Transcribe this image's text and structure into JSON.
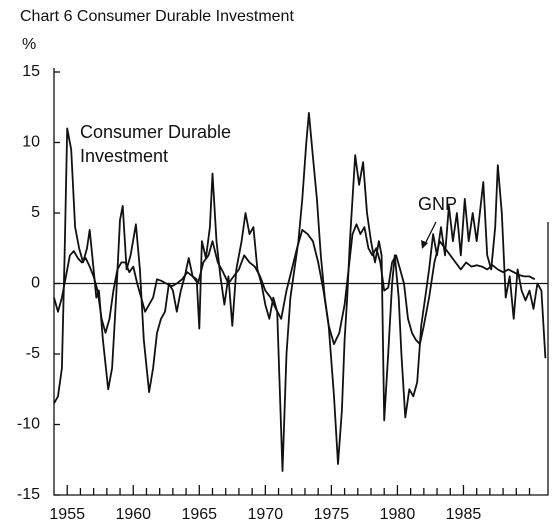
{
  "chart_data": {
    "type": "line",
    "title": "Chart 6  Consumer Durable Investment",
    "y_label": "%",
    "annotations": [
      "Consumer Durable",
      "Investment",
      "GNP"
    ],
    "xlim": [
      1954.0,
      1991.4
    ],
    "xticks": [
      1955,
      1960,
      1965,
      1970,
      1975,
      1980,
      1985
    ],
    "xminorticks": [
      1956,
      1957,
      1958,
      1959,
      1961,
      1962,
      1963,
      1964,
      1966,
      1967,
      1968,
      1969,
      1971,
      1972,
      1973,
      1974,
      1976,
      1977,
      1978,
      1979,
      1981,
      1982,
      1983,
      1984,
      1986,
      1987,
      1988,
      1989,
      1990
    ],
    "ylim": [
      -15,
      15
    ],
    "yticks": [
      -15,
      -10,
      -5,
      0,
      5,
      10,
      15
    ],
    "zero_line": true,
    "series": [
      {
        "color": "#111111",
        "x": [
          1954.0,
          1954.3,
          1954.6,
          1954.8,
          1955.0,
          1955.3,
          1955.6,
          1955.9,
          1956.2,
          1956.5,
          1956.7,
          1957.0,
          1957.2,
          1957.4,
          1957.7,
          1958.1,
          1958.4,
          1958.7,
          1959.0,
          1959.2,
          1959.5,
          1959.8,
          1960.2,
          1960.5,
          1960.8,
          1961.2,
          1961.5,
          1961.8,
          1962.1,
          1962.4,
          1962.7,
          1963.0,
          1963.3,
          1963.6,
          1963.9,
          1964.2,
          1964.5,
          1964.8,
          1965.0,
          1965.2,
          1965.5,
          1965.8,
          1966.0,
          1966.3,
          1966.6,
          1966.9,
          1967.2,
          1967.5,
          1967.8,
          1968.2,
          1968.5,
          1968.8,
          1969.1,
          1969.4,
          1969.7,
          1970.0,
          1970.3,
          1970.6,
          1970.9,
          1971.3,
          1971.6,
          1971.9,
          1972.2,
          1972.5,
          1972.8,
          1973.1,
          1973.3,
          1973.6,
          1973.9,
          1974.2,
          1974.5,
          1974.8,
          1975.2,
          1975.5,
          1975.8,
          1976.0,
          1976.2,
          1976.4,
          1976.6,
          1976.8,
          1977.1,
          1977.4,
          1977.7,
          1978.0,
          1978.3,
          1978.6,
          1978.8,
          1979.0,
          1979.3,
          1979.6,
          1979.8,
          1980.1,
          1980.3,
          1980.6,
          1980.9,
          1981.2,
          1981.5,
          1981.8,
          1982.1,
          1982.4,
          1982.7,
          1983.0,
          1983.3,
          1983.6,
          1983.9,
          1984.2,
          1984.5,
          1984.8,
          1985.1,
          1985.4,
          1985.7,
          1986.0,
          1986.5,
          1986.8,
          1987.1,
          1987.4,
          1987.6,
          1987.9,
          1988.2,
          1988.5,
          1988.8,
          1989.1,
          1989.4,
          1989.7,
          1990.0,
          1990.3,
          1990.6,
          1990.9,
          1991.2
        ],
        "values": [
          -8.5,
          -8,
          -6,
          2,
          11,
          9.5,
          4,
          2.5,
          1.5,
          2.5,
          3.8,
          1,
          -1,
          -0.5,
          -4,
          -7.5,
          -6,
          -1,
          4.5,
          5.5,
          1,
          2,
          4.2,
          1,
          -4,
          -7.7,
          -6,
          -3.5,
          -2.5,
          -2,
          0,
          -0.5,
          -2,
          -0.5,
          0.5,
          1.8,
          0.5,
          0.3,
          -3.2,
          3,
          1.8,
          4,
          7.8,
          3,
          0.5,
          -1.5,
          0.5,
          -3,
          1,
          3,
          5,
          3.5,
          4,
          1,
          0,
          -1.5,
          -2.5,
          -1,
          -2,
          -13.3,
          -5,
          -1,
          1,
          3,
          6,
          10,
          12.1,
          9,
          6,
          2,
          -1,
          -3,
          -8,
          -12.8,
          -9,
          -4,
          -1,
          3,
          6,
          9.1,
          7,
          8.6,
          5,
          3,
          1.5,
          3,
          2,
          -9.7,
          -5,
          0,
          2,
          -1,
          -5,
          -9.5,
          -7.5,
          -8,
          -7,
          -3,
          -1,
          1,
          3.5,
          2,
          4,
          2,
          5.5,
          3,
          5,
          2,
          6,
          3,
          5,
          3,
          7.2,
          2,
          1,
          4,
          8.4,
          5,
          -1,
          0.5,
          -2.5,
          1,
          -0.5,
          -1.2,
          -0.5,
          -1.8,
          0,
          -0.5,
          -5.3
        ]
      },
      {
        "color": "#111111",
        "x": [
          1954.0,
          1954.3,
          1954.6,
          1954.9,
          1955.2,
          1955.5,
          1955.8,
          1956.1,
          1956.4,
          1956.7,
          1957.0,
          1957.3,
          1957.6,
          1957.9,
          1958.2,
          1958.5,
          1958.8,
          1959.1,
          1959.4,
          1959.7,
          1960.0,
          1960.3,
          1960.6,
          1960.9,
          1961.2,
          1961.5,
          1961.8,
          1962.1,
          1962.5,
          1962.9,
          1963.3,
          1963.7,
          1964.1,
          1964.5,
          1964.9,
          1965.3,
          1965.7,
          1966.0,
          1966.4,
          1966.8,
          1967.2,
          1967.6,
          1968.0,
          1968.4,
          1968.8,
          1969.2,
          1969.6,
          1970.0,
          1970.4,
          1970.8,
          1971.2,
          1971.6,
          1972.0,
          1972.4,
          1972.8,
          1973.2,
          1973.6,
          1974.0,
          1974.4,
          1974.8,
          1975.2,
          1975.6,
          1976.0,
          1976.3,
          1976.6,
          1976.9,
          1977.2,
          1977.5,
          1977.8,
          1978.1,
          1978.4,
          1978.7,
          1979.0,
          1979.3,
          1979.6,
          1979.9,
          1980.2,
          1980.5,
          1980.8,
          1981.1,
          1981.4,
          1981.7,
          1982.0,
          1982.4,
          1982.8,
          1983.2,
          1983.6,
          1984.0,
          1984.4,
          1984.8,
          1985.2,
          1985.6,
          1986.0,
          1986.4,
          1986.8,
          1987.2,
          1987.6,
          1988.0,
          1988.4,
          1988.8,
          1989.2,
          1989.6,
          1990.0,
          1990.4
        ],
        "values": [
          -1,
          -2,
          -1,
          0.5,
          2,
          2.3,
          1.8,
          1.5,
          1.8,
          1.2,
          0.5,
          -0.5,
          -2.5,
          -3.5,
          -2.5,
          -0.5,
          1,
          1.5,
          1.5,
          0.8,
          1.2,
          0,
          -1,
          -2,
          -1.5,
          -1,
          0.3,
          0.2,
          0,
          -0.2,
          0,
          0.3,
          0.8,
          0.5,
          0,
          1.5,
          2,
          3,
          1.5,
          0.8,
          0,
          0.5,
          1,
          2,
          1.5,
          1.2,
          0.5,
          -0.5,
          -1,
          -1.8,
          -2.5,
          -0.5,
          1,
          2.5,
          3.8,
          3.5,
          3,
          1.5,
          -0.5,
          -3,
          -4.3,
          -3.5,
          -1.5,
          1,
          3.5,
          4.2,
          3.5,
          4,
          2.5,
          2,
          2.5,
          1.5,
          -0.5,
          -0.3,
          1.5,
          2,
          1,
          0,
          -2.5,
          -3.5,
          -4,
          -4.3,
          -3,
          -1,
          1.5,
          3,
          2.5,
          2,
          1.5,
          1,
          1.5,
          1.2,
          1.3,
          1.2,
          1,
          1.3,
          1,
          0.8,
          1,
          0.8,
          0.6,
          0.5,
          0.5,
          0.3
        ]
      }
    ]
  }
}
